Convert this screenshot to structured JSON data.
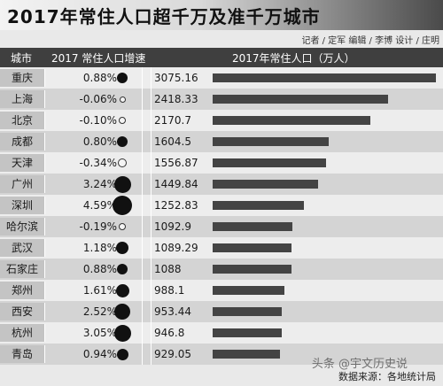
{
  "title": "2017年常住人口超千万及准千万城市",
  "credits": "记者 / 定军   编辑 / 李博   设计 / 庄明",
  "headers": {
    "city": "城市",
    "rate": "2017 常住人口增速",
    "pop": "2017年常住人口（万人）"
  },
  "watermark": "头条 @宇文历史说",
  "source": "数据来源：各地统计局",
  "chart_data": {
    "type": "table",
    "title": "2017年常住人口超千万及准千万城市",
    "columns": [
      "城市",
      "2017 常住人口增速",
      "2017年常住人口（万人）"
    ],
    "rows": [
      {
        "city": "重庆",
        "growth": 0.88,
        "growth_label": "0.88%",
        "population": 3075.16,
        "population_label": "3075.16"
      },
      {
        "city": "上海",
        "growth": -0.06,
        "growth_label": "-0.06%",
        "population": 2418.33,
        "population_label": "2418.33"
      },
      {
        "city": "北京",
        "growth": -0.1,
        "growth_label": "-0.10%",
        "population": 2170.7,
        "population_label": "2170.7"
      },
      {
        "city": "成都",
        "growth": 0.8,
        "growth_label": "0.80%",
        "population": 1604.5,
        "population_label": "1604.5"
      },
      {
        "city": "天津",
        "growth": -0.34,
        "growth_label": "-0.34%",
        "population": 1556.87,
        "population_label": "1556.87"
      },
      {
        "city": "广州",
        "growth": 3.24,
        "growth_label": "3.24%",
        "population": 1449.84,
        "population_label": "1449.84"
      },
      {
        "city": "深圳",
        "growth": 4.59,
        "growth_label": "4.59%",
        "population": 1252.83,
        "population_label": "1252.83"
      },
      {
        "city": "哈尔滨",
        "growth": -0.19,
        "growth_label": "-0.19%",
        "population": 1092.9,
        "population_label": "1092.9"
      },
      {
        "city": "武汉",
        "growth": 1.18,
        "growth_label": "1.18%",
        "population": 1089.29,
        "population_label": "1089.29"
      },
      {
        "city": "石家庄",
        "growth": 0.88,
        "growth_label": "0.88%",
        "population": 1088,
        "population_label": "1088"
      },
      {
        "city": "郑州",
        "growth": 1.61,
        "growth_label": "1.61%",
        "population": 988.1,
        "population_label": "988.1"
      },
      {
        "city": "西安",
        "growth": 2.52,
        "growth_label": "2.52%",
        "population": 953.44,
        "population_label": "953.44"
      },
      {
        "city": "杭州",
        "growth": 3.05,
        "growth_label": "3.05%",
        "population": 946.8,
        "population_label": "946.8"
      },
      {
        "city": "青岛",
        "growth": 0.94,
        "growth_label": "0.94%",
        "population": 929.05,
        "population_label": "929.05"
      }
    ],
    "population_max": 3075.16,
    "bar_color": "#444444",
    "negative_dot_style": "hollow"
  }
}
